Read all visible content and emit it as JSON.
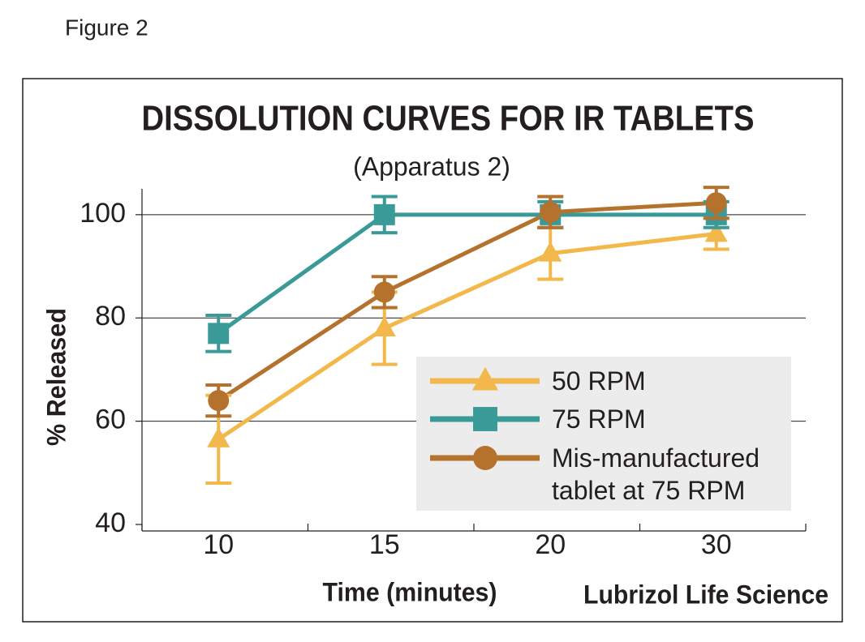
{
  "chart_data": {
    "type": "line",
    "figure_label": "Figure 2",
    "title": "DISSOLUTION CURVES FOR IR TABLETS",
    "subtitle": "(Apparatus 2)",
    "x_label": "Time (minutes)",
    "y_label": "% Released",
    "source": "Lubrizol Life Science",
    "categories": [
      "10",
      "15",
      "20",
      "30"
    ],
    "series": [
      {
        "name": "50 RPM",
        "color": "#f3b84b",
        "marker": "triangle",
        "values": [
          56.5,
          78,
          92.5,
          96.3
        ],
        "errors": [
          8.5,
          7,
          5,
          3
        ]
      },
      {
        "name": "75 RPM",
        "color": "#3a9a98",
        "marker": "square",
        "values": [
          77,
          100,
          100,
          100
        ],
        "errors": [
          3.5,
          3.5,
          2.5,
          2.5
        ]
      },
      {
        "name": "Mis-manufactured tablet at 75 RPM",
        "color": "#b5722d",
        "marker": "circle",
        "values": [
          64,
          85,
          100.5,
          102.3
        ],
        "errors": [
          3,
          3,
          3,
          3
        ]
      }
    ],
    "ylim": [
      40,
      105
    ],
    "yticks": [
      40,
      60,
      80,
      100
    ],
    "grid": true
  }
}
